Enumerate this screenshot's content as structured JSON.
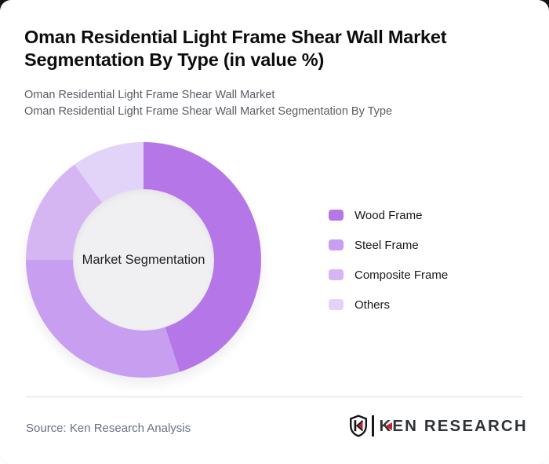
{
  "header": {
    "title": "Oman Residential Light Frame Shear Wall Market Segmentation By Type (in value %)",
    "subtitle_line1": "Oman Residential Light Frame Shear Wall Market",
    "subtitle_line2": "Oman Residential Light Frame Shear Wall Market Segmentation By Type"
  },
  "chart_data": {
    "type": "pie",
    "subtype": "donut",
    "title": "Oman Residential Light Frame Shear Wall Market Segmentation By Type (in value %)",
    "center_label": "Market Segmentation",
    "categories": [
      "Wood Frame",
      "Steel Frame",
      "Composite Frame",
      "Others"
    ],
    "values": [
      45,
      30,
      15,
      10
    ],
    "unit": "value %",
    "colors": [
      "#b577e8",
      "#c79ef0",
      "#d5b6f3",
      "#e2d3f8"
    ],
    "start_angle_deg": 0,
    "direction": "clockwise",
    "legend_position": "right",
    "hole_color": "#f0eff1"
  },
  "legend": {
    "items": [
      {
        "label": "Wood Frame",
        "color": "#b577e8"
      },
      {
        "label": "Steel Frame",
        "color": "#c79ef0"
      },
      {
        "label": "Composite Frame",
        "color": "#d5b6f3"
      },
      {
        "label": "Others",
        "color": "#e2d3f8"
      }
    ]
  },
  "footer": {
    "source": "Source: Ken Research Analysis",
    "logo_text": "KEN RESEARCH",
    "logo_shield_letter": "K",
    "logo_red": "#c3252f",
    "logo_dark": "#16181a"
  }
}
